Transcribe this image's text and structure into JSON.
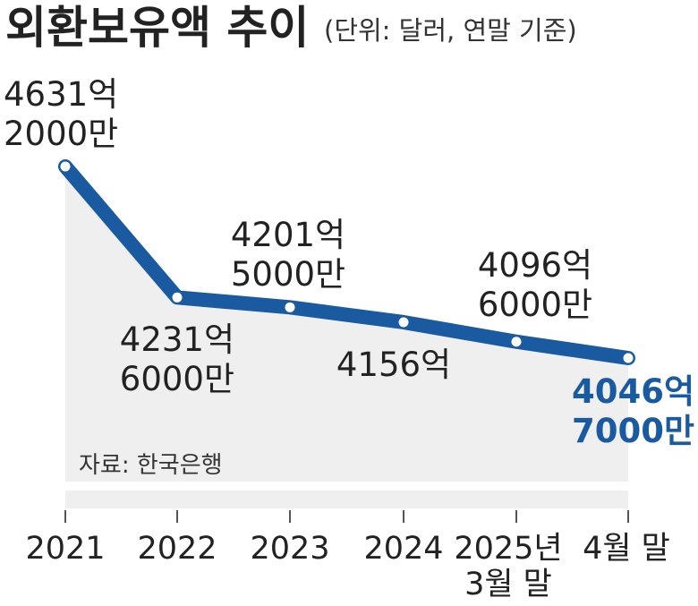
{
  "header": {
    "title": "외환보유액 추이",
    "subtitle": "(단위: 달러, 연말 기준)"
  },
  "source": "자료: 한국은행",
  "colors": {
    "line": "#1a5aa0",
    "marker_fill": "#ffffff",
    "area": "#efefef",
    "highlight_label": "#1a5aa0"
  },
  "chart_data": {
    "type": "line",
    "title": "외환보유액 추이",
    "subtitle": "(단위: 달러, 연말 기준)",
    "unit": "달러",
    "categories": [
      "2021",
      "2022",
      "2023",
      "2024",
      "2025년 3월 말",
      "4월 말"
    ],
    "values": [
      463120000000,
      423160000000,
      420150000000,
      415600000000,
      409660000000,
      404670000000
    ],
    "data_labels": [
      [
        "4631억",
        "2000만"
      ],
      [
        "4231억",
        "6000만"
      ],
      [
        "4201억",
        "5000만"
      ],
      [
        "4156억"
      ],
      [
        "4096억",
        "6000만"
      ],
      [
        "4046억",
        "7000만"
      ]
    ],
    "x_tick_labels": [
      [
        "2021"
      ],
      [
        "2022"
      ],
      [
        "2023"
      ],
      [
        "2024"
      ],
      [
        "2025년",
        "3월 말"
      ],
      [
        "4월 말"
      ]
    ],
    "ylim": [
      398000000000,
      466000000000
    ],
    "grid": false,
    "legend": "none"
  }
}
